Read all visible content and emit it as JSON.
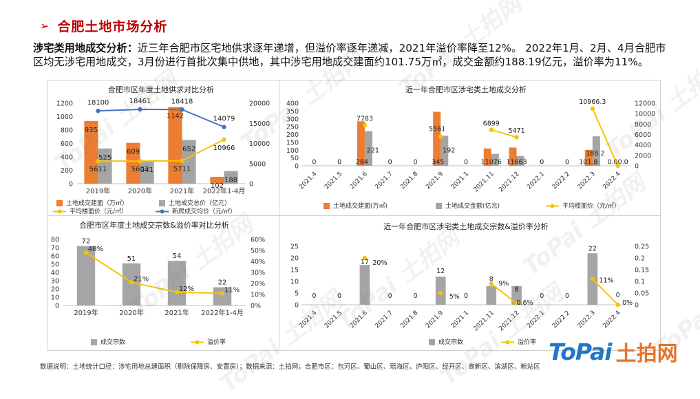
{
  "header": {
    "arrow_glyph": "➢",
    "title": "合肥土地市场分析"
  },
  "summary": {
    "label": "涉宅类用地成交分析：",
    "text": "近三年合肥市区宅地供求逐年递增，但溢价率逐年递减，2021年溢价率降至12%。 2022年1月、2月、4月合肥市区均无涉宅用地成交，3月份进行首批次集中供地，其中涉宅用地成交建面约101.75万㎡，成交金额约188.19亿元，溢价率为11%。"
  },
  "footnote": "数据说明：土地统计口径：涉宅用地总建面积（剔除保障房、安置房）；数据来源：土拍网；合肥市区：包河区、蜀山区、瑶海区、庐阳区、经开区、高新区、滨湖区、新站区",
  "brand": {
    "logo": "ToPai",
    "cn": "土拍网"
  },
  "watermark": "ToPai 土拍网",
  "colors": {
    "orange": "#ed7d31",
    "gray": "#a5a5a5",
    "yellow": "#f5c400",
    "blue": "#4472c4",
    "title_red": "#c00000",
    "brand_blue": "#2077c8",
    "brand_orange": "#e8732a"
  },
  "chart_data": [
    {
      "type": "bar",
      "title": "合肥市区年度土地供求对比分析",
      "categories": [
        "2019年",
        "2020年",
        "2021年",
        "2022年1-4月"
      ],
      "ylim": [
        0,
        1200
      ],
      "y_ticks": [
        "0",
        "200",
        "400",
        "600",
        "800",
        "1000",
        "1200"
      ],
      "y2lim": [
        0,
        20000
      ],
      "y2_ticks": [
        "0",
        "5000",
        "10000",
        "15000",
        "20000"
      ],
      "series": [
        {
          "name": "土地成交建面（万㎡）",
          "kind": "bar",
          "axis": "left",
          "values": [
            935,
            609,
            1142,
            102
          ],
          "labels": [
            "935",
            "609",
            "1142",
            "102"
          ]
        },
        {
          "name": "土地成交总价（亿元）",
          "kind": "bar",
          "axis": "left",
          "values": [
            525,
            341,
            652,
            188
          ],
          "labels": [
            "525",
            "341",
            "652",
            "188"
          ]
        },
        {
          "name": "平均楼面价（元/㎡）",
          "kind": "line",
          "axis": "right",
          "values": [
            5611,
            5603,
            5711,
            10966
          ],
          "labels": [
            "5611",
            "5603",
            "5711",
            "10966"
          ]
        },
        {
          "name": "新房成交均价（元/㎡）",
          "kind": "line",
          "axis": "right",
          "values": [
            18100,
            18461,
            18418,
            14079
          ],
          "labels": [
            "18100",
            "18461",
            "18418",
            "14079"
          ]
        }
      ]
    },
    {
      "type": "bar",
      "title": "近一年合肥市区涉宅类土地成交分析",
      "categories": [
        "2021.4",
        "2021.5",
        "2021.6",
        "2021.7",
        "2021.8",
        "2021.9",
        "2021.1",
        "2021.11",
        "2021.12",
        "2022.1",
        "2022.2",
        "2022.3",
        "2022.4"
      ],
      "ylim": [
        0,
        400
      ],
      "y_ticks": [
        "0",
        "50",
        "100",
        "150",
        "200",
        "250",
        "300",
        "350",
        "400"
      ],
      "y2lim": [
        0,
        12000
      ],
      "y2_ticks": [
        "0",
        "2000",
        "4000",
        "6000",
        "8000",
        "10000",
        "12000"
      ],
      "series": [
        {
          "name": "土地成交建面(万㎡)",
          "kind": "bar",
          "axis": "left",
          "values": [
            0,
            0,
            284,
            0,
            0,
            345,
            0,
            110.76,
            116.63,
            0,
            0,
            101.8,
            0
          ]
        },
        {
          "name": "土地成交金额(亿元)",
          "kind": "bar",
          "axis": "left",
          "values": [
            0,
            0,
            221,
            0,
            0,
            192,
            0,
            76,
            63,
            0,
            0,
            188.2,
            0
          ]
        },
        {
          "name": "平均楼面价（元/㎡）",
          "kind": "line",
          "axis": "right",
          "values": [
            null,
            null,
            7783,
            null,
            null,
            5561,
            null,
            6899,
            5471,
            null,
            null,
            10966.3,
            0
          ]
        }
      ],
      "labels": [
        {
          "text": "0",
          "i": 0,
          "v": 10,
          "axis": "left"
        },
        {
          "text": "0",
          "i": 1,
          "v": 10,
          "axis": "left"
        },
        {
          "text": "284",
          "i": 2,
          "v": 10,
          "axis": "left",
          "dx": -4
        },
        {
          "text": "221",
          "i": 2,
          "v": 85,
          "axis": "left",
          "dx": 12
        },
        {
          "text": "7783",
          "i": 2,
          "v": 8650,
          "axis": "right"
        },
        {
          "text": "0",
          "i": 3,
          "v": 10,
          "axis": "left"
        },
        {
          "text": "0",
          "i": 4,
          "v": 10,
          "axis": "left"
        },
        {
          "text": "345",
          "i": 5,
          "v": 10,
          "axis": "left",
          "dx": -4
        },
        {
          "text": "5561",
          "i": 5,
          "v": 6650,
          "axis": "right",
          "dx": -5
        },
        {
          "text": "192",
          "i": 5,
          "v": 85,
          "axis": "left",
          "dx": 12
        },
        {
          "text": "0",
          "i": 6,
          "v": 10,
          "axis": "left"
        },
        {
          "text": "6899",
          "i": 7,
          "v": 7700,
          "axis": "right"
        },
        {
          "text": "11076",
          "i": 7,
          "v": 10,
          "axis": "left"
        },
        {
          "text": "5471",
          "i": 8,
          "v": 6300,
          "axis": "right"
        },
        {
          "text": "11663",
          "i": 8,
          "v": 10,
          "axis": "left"
        },
        {
          "text": "0",
          "i": 9,
          "v": 10,
          "axis": "left"
        },
        {
          "text": "0",
          "i": 10,
          "v": 10,
          "axis": "left"
        },
        {
          "text": "10966.3",
          "i": 11,
          "v": 11900,
          "axis": "right"
        },
        {
          "text": "101.8",
          "i": 11,
          "v": 10,
          "axis": "left",
          "dx": -6
        },
        {
          "text": "188.2",
          "i": 11,
          "v": 65,
          "axis": "left",
          "dx": 4
        },
        {
          "text": "0.00.0",
          "i": 12,
          "v": 10,
          "axis": "left"
        }
      ]
    },
    {
      "type": "bar",
      "title": "合肥市区年度土地成交宗数&溢价率对比分析",
      "categories": [
        "2019年",
        "2020年",
        "2021年",
        "2022年1-4月"
      ],
      "ylim": [
        0,
        80
      ],
      "y_ticks": [
        "0",
        "10",
        "20",
        "30",
        "40",
        "50",
        "60",
        "70",
        "80"
      ],
      "y2lim": [
        0,
        0.6
      ],
      "y2_ticks": [
        "0%",
        "10%",
        "20%",
        "30%",
        "40%",
        "50%",
        "60%"
      ],
      "series": [
        {
          "name": "成交宗数",
          "kind": "bar",
          "axis": "left",
          "values": [
            72,
            51,
            54,
            22
          ],
          "labels": [
            "72",
            "51",
            "54",
            "22"
          ]
        },
        {
          "name": "溢价率",
          "kind": "line",
          "axis": "right",
          "values": [
            0.48,
            0.21,
            0.12,
            0.11
          ],
          "labels": [
            "48%",
            "21%",
            "12%",
            "11%"
          ]
        }
      ]
    },
    {
      "type": "bar",
      "title": "近一年合肥市区涉宅类土地成交宗数&溢价率分析",
      "categories": [
        "2021.4",
        "2021.5",
        "2021.6",
        "2021.7",
        "2021.8",
        "2021.9",
        "2021.1",
        "2021.11",
        "2021.12",
        "2022.1",
        "2022.2",
        "2022.3",
        "2022.4"
      ],
      "ylim": [
        0,
        25
      ],
      "y_ticks": [
        "0",
        "5",
        "10",
        "15",
        "20",
        "25"
      ],
      "y2lim": [
        0,
        0.25
      ],
      "y2_ticks": [
        "0",
        "0.05",
        "0.1",
        "0.15",
        "0.2",
        "0.25"
      ],
      "series": [
        {
          "name": "成交宗数",
          "kind": "bar",
          "axis": "left",
          "values": [
            0,
            0,
            17,
            0,
            0,
            12,
            0,
            8,
            8,
            0,
            0,
            22,
            0
          ]
        },
        {
          "name": "溢价率",
          "kind": "line",
          "axis": "right",
          "values": [
            null,
            null,
            0.2,
            null,
            null,
            0.05,
            null,
            0.09,
            0.006,
            null,
            null,
            0.11,
            0
          ]
        }
      ],
      "labels": [
        {
          "text": "0",
          "i": 0,
          "v": 3,
          "axis": "left"
        },
        {
          "text": "0",
          "i": 1,
          "v": 3,
          "axis": "left"
        },
        {
          "text": "17",
          "i": 2,
          "v": 17.4,
          "axis": "left"
        },
        {
          "text": "20%",
          "i": 2,
          "v": 0.17,
          "axis": "right",
          "dx": 22
        },
        {
          "text": "0",
          "i": 3,
          "v": 3,
          "axis": "left"
        },
        {
          "text": "0",
          "i": 4,
          "v": 3,
          "axis": "left"
        },
        {
          "text": "12",
          "i": 5,
          "v": 13.6,
          "axis": "left"
        },
        {
          "text": "5%",
          "i": 5,
          "v": 0.027,
          "axis": "right",
          "dx": 20
        },
        {
          "text": "0",
          "i": 6,
          "v": 3,
          "axis": "left"
        },
        {
          "text": "8",
          "i": 7,
          "v": 10.2,
          "axis": "left"
        },
        {
          "text": "9%",
          "i": 7,
          "v": 0.082,
          "axis": "right",
          "dx": 18
        },
        {
          "text": "8",
          "i": 8,
          "v": 5.7,
          "axis": "left"
        },
        {
          "text": "0.6%",
          "i": 8,
          "v": 0.0,
          "axis": "right",
          "dx": 12
        },
        {
          "text": "0",
          "i": 9,
          "v": 3,
          "axis": "left"
        },
        {
          "text": "0",
          "i": 10,
          "v": 3,
          "axis": "left"
        },
        {
          "text": "22",
          "i": 11,
          "v": 23.1,
          "axis": "left"
        },
        {
          "text": "11%",
          "i": 11,
          "v": 0.096,
          "axis": "right",
          "dx": 20
        },
        {
          "text": "0",
          "i": 12,
          "v": 3.2,
          "axis": "left"
        },
        {
          "text": "0%",
          "i": 12,
          "v": 0.0,
          "axis": "right",
          "dx": 14
        }
      ]
    }
  ]
}
